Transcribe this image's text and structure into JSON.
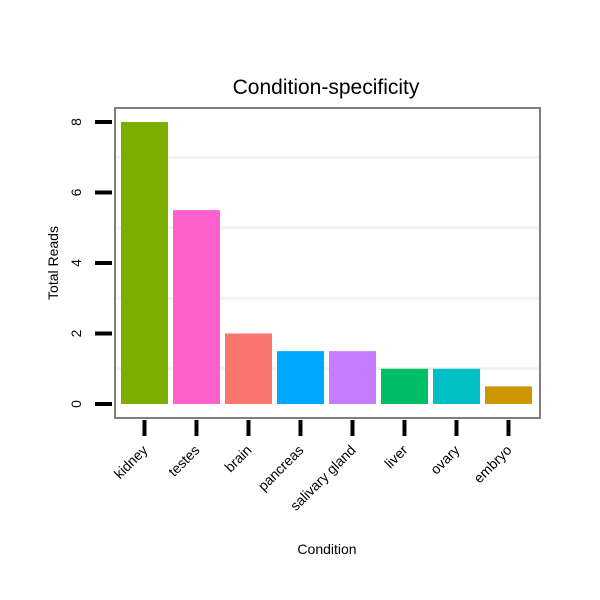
{
  "chart_data": {
    "type": "bar",
    "title": "Condition-specificity",
    "xlabel": "Condition",
    "ylabel": "Total Reads",
    "categories": [
      "kidney",
      "testes",
      "brain",
      "pancreas",
      "salivary gland",
      "liver",
      "ovary",
      "embryo"
    ],
    "values": [
      8,
      5.5,
      2,
      1.5,
      1.5,
      1,
      1,
      0.5
    ],
    "colors": [
      "#7CAE00",
      "#FF61CC",
      "#F8766D",
      "#00A9FF",
      "#C77CFF",
      "#00BE67",
      "#00BFC4",
      "#CD9600"
    ],
    "yticks": [
      "0",
      "2",
      "4",
      "6",
      "8"
    ],
    "ytick_values": [
      0,
      2,
      4,
      6,
      8
    ],
    "ylim": [
      -0.4,
      8.4
    ],
    "grid": true,
    "legend": "none"
  }
}
